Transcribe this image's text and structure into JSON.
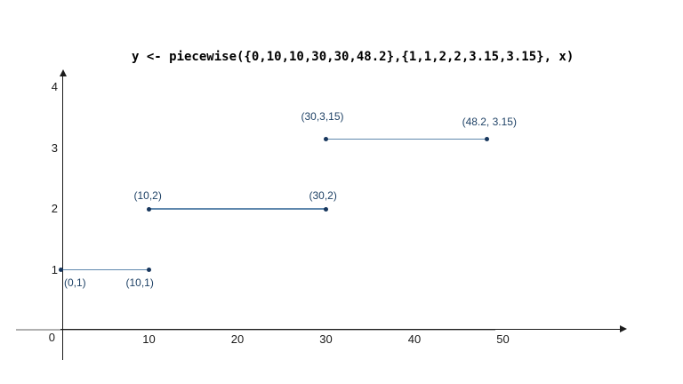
{
  "title": "y <- piecewise({0,10,10,30,30,48.2},{1,1,2,2,3.15,3.15}, x)",
  "chart_data": {
    "type": "line",
    "title": "y <- piecewise({0,10,10,30,30,48.2},{1,1,2,2,3.15,3.15}, x)",
    "xlabel": "",
    "ylabel": "",
    "xlim": [
      0,
      63
    ],
    "ylim": [
      0,
      4.3
    ],
    "grid": false,
    "legend": "none",
    "x_ticks": [
      0,
      10,
      20,
      30,
      40,
      50
    ],
    "y_ticks": [
      1,
      2,
      3,
      4
    ],
    "origin_label": "0",
    "segments": [
      {
        "name": "segment-1",
        "points": [
          {
            "x": 0,
            "y": 1,
            "label": "(0,1)",
            "label_dx": 4,
            "label_dy": 8
          },
          {
            "x": 10,
            "y": 1,
            "label": "(10,1)",
            "label_dx": -26,
            "label_dy": 8
          }
        ]
      },
      {
        "name": "segment-2",
        "points": [
          {
            "x": 10,
            "y": 2,
            "label": "(10,2)",
            "label_dx": -17,
            "label_dy": -21
          },
          {
            "x": 30,
            "y": 2,
            "label": "(30,2)",
            "label_dx": -19,
            "label_dy": -21
          }
        ]
      },
      {
        "name": "segment-3",
        "points": [
          {
            "x": 30,
            "y": 3.15,
            "label": "(30,3,15)",
            "label_dx": -28,
            "label_dy": -31
          },
          {
            "x": 48.2,
            "y": 3.15,
            "label": "(48.2, 3.15)",
            "label_dx": -28,
            "label_dy": -25
          }
        ]
      }
    ]
  },
  "colors": {
    "title_text": "#000000",
    "tick_text": "#1a1a1a",
    "axis": "#1c1c1c",
    "baseline_gray": "#b0b0b0",
    "segment_line": "#5f87ad",
    "point": "#17365d",
    "label_text": "#1f4266"
  }
}
